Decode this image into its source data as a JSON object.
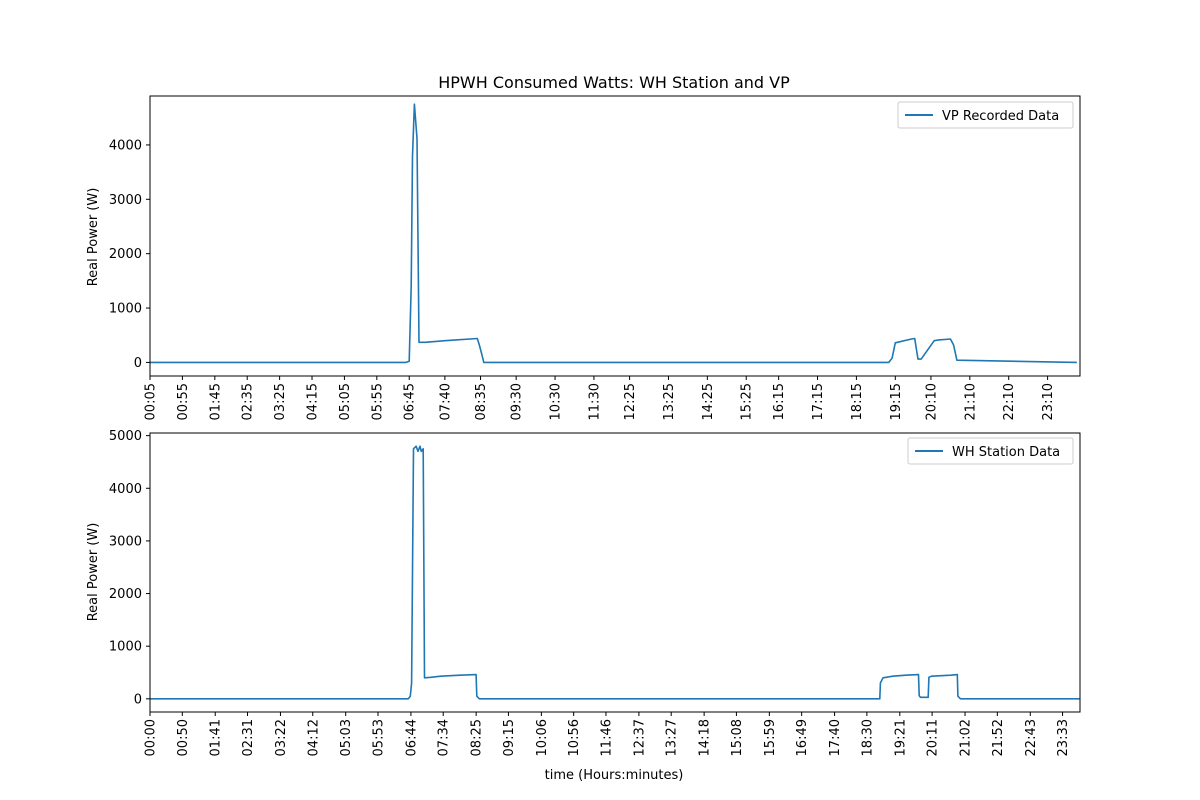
{
  "figure_title": "HPWH Consumed Watts: WH Station and VP",
  "colors": {
    "series": "#1f77b4",
    "axes": "#000000",
    "background": "#ffffff",
    "legend_border": "#cccccc"
  },
  "chart_data": [
    {
      "type": "line",
      "title": "HPWH Consumed Watts: WH Station and VP",
      "xlabel": "",
      "ylabel": "Real Power (W)",
      "xlim_minutes": [
        5,
        1440
      ],
      "ylim": [
        -250,
        4900
      ],
      "yticks": [
        0,
        1000,
        2000,
        3000,
        4000
      ],
      "ytick_labels": [
        "0",
        "1000",
        "2000",
        "3000",
        "4000"
      ],
      "xtick_labels": [
        "00:05",
        "00:55",
        "01:45",
        "02:35",
        "03:25",
        "04:15",
        "05:05",
        "05:55",
        "06:45",
        "07:40",
        "08:35",
        "09:30",
        "10:30",
        "11:30",
        "12:25",
        "13:25",
        "14:25",
        "15:25",
        "16:15",
        "17:15",
        "18:15",
        "19:15",
        "20:10",
        "21:10",
        "22:10",
        "23:10"
      ],
      "legend": {
        "position": "upper right",
        "entries": [
          "VP Recorded Data"
        ]
      },
      "grid": false,
      "series": [
        {
          "name": "VP Recorded Data",
          "x": [
            "00:05",
            "06:40",
            "06:45",
            "06:48",
            "06:50",
            "06:53",
            "06:57",
            "07:00",
            "07:10",
            "07:40",
            "08:30",
            "08:33",
            "08:37",
            "08:40",
            "18:45",
            "19:05",
            "19:10",
            "19:15",
            "19:40",
            "19:45",
            "19:50",
            "19:55",
            "20:15",
            "20:20",
            "20:40",
            "20:45",
            "20:50",
            "23:55"
          ],
          "y": [
            0,
            0,
            20,
            1400,
            3800,
            4750,
            4120,
            370,
            370,
            400,
            440,
            330,
            150,
            0,
            0,
            0,
            80,
            360,
            430,
            440,
            60,
            60,
            400,
            410,
            430,
            320,
            40,
            0
          ]
        }
      ]
    },
    {
      "type": "line",
      "title": "",
      "xlabel": "time (Hours:minutes)",
      "ylabel": "Real Power (W)",
      "xlim_minutes": [
        0,
        1440
      ],
      "ylim": [
        -250,
        5050
      ],
      "yticks": [
        0,
        1000,
        2000,
        3000,
        4000,
        5000
      ],
      "ytick_labels": [
        "0",
        "1000",
        "2000",
        "3000",
        "4000",
        "5000"
      ],
      "xtick_labels": [
        "00:00",
        "00:50",
        "01:41",
        "02:31",
        "03:22",
        "04:12",
        "05:03",
        "05:53",
        "06:44",
        "07:34",
        "08:25",
        "09:15",
        "10:06",
        "10:56",
        "11:46",
        "12:37",
        "13:27",
        "14:18",
        "15:08",
        "15:59",
        "16:49",
        "17:40",
        "18:30",
        "19:21",
        "20:11",
        "21:02",
        "21:52",
        "22:43",
        "23:33"
      ],
      "legend": {
        "position": "upper right",
        "entries": [
          "WH Station Data"
        ]
      },
      "grid": false,
      "series": [
        {
          "name": "WH Station Data",
          "x": [
            "00:00",
            "06:40",
            "06:43",
            "06:45",
            "06:48",
            "06:52",
            "06:55",
            "06:58",
            "07:00",
            "07:03",
            "07:05",
            "07:15",
            "07:30",
            "08:00",
            "08:25",
            "08:26",
            "08:30",
            "18:50",
            "18:51",
            "18:55",
            "19:10",
            "19:30",
            "19:50",
            "19:51",
            "19:53",
            "20:05",
            "20:06",
            "20:10",
            "20:40",
            "20:50",
            "20:51",
            "20:55",
            "23:59"
          ],
          "y": [
            0,
            0,
            50,
            300,
            4750,
            4800,
            4700,
            4800,
            4700,
            4750,
            400,
            410,
            430,
            450,
            460,
            50,
            0,
            0,
            300,
            400,
            430,
            450,
            460,
            60,
            30,
            30,
            410,
            430,
            450,
            460,
            50,
            0,
            0
          ]
        }
      ]
    }
  ]
}
